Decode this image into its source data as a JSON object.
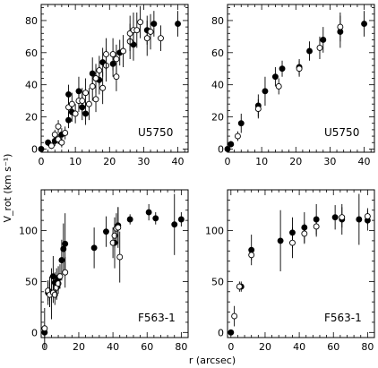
{
  "figure": {
    "xlabel": "r (arcsec)",
    "ylabel": "V_rot (km s⁻¹)"
  },
  "chart_data": [
    {
      "type": "scatter",
      "label": "U5750",
      "xlim": [
        0,
        43
      ],
      "ylim": [
        -2,
        90
      ],
      "xticks": [
        0,
        10,
        20,
        30,
        40
      ],
      "yticks": [
        0,
        20,
        40,
        60,
        80
      ],
      "series": [
        {
          "marker": "filled",
          "points": [
            {
              "x": 0,
              "y": 0,
              "err": 0
            },
            {
              "x": 2,
              "y": 4,
              "err": 2
            },
            {
              "x": 4,
              "y": 5,
              "err": 3
            },
            {
              "x": 6,
              "y": 9,
              "err": 4
            },
            {
              "x": 8,
              "y": 34,
              "err": 6
            },
            {
              "x": 8,
              "y": 18,
              "err": 5
            },
            {
              "x": 9,
              "y": 23,
              "err": 6
            },
            {
              "x": 11,
              "y": 36,
              "err": 9
            },
            {
              "x": 12,
              "y": 26,
              "err": 8
            },
            {
              "x": 13,
              "y": 22,
              "err": 7
            },
            {
              "x": 15,
              "y": 47,
              "err": 10
            },
            {
              "x": 17,
              "y": 43,
              "err": 9
            },
            {
              "x": 18,
              "y": 54,
              "err": 9
            },
            {
              "x": 21,
              "y": 53,
              "err": 8
            },
            {
              "x": 23,
              "y": 60,
              "err": 8
            },
            {
              "x": 27,
              "y": 65,
              "err": 10
            },
            {
              "x": 31,
              "y": 74,
              "err": 9
            },
            {
              "x": 33,
              "y": 78,
              "err": 8
            },
            {
              "x": 40,
              "y": 78,
              "err": 8
            }
          ]
        },
        {
          "marker": "open",
          "points": [
            {
              "x": 3,
              "y": 2,
              "err": 2
            },
            {
              "x": 4,
              "y": 9,
              "err": 3
            },
            {
              "x": 5,
              "y": 14,
              "err": 4
            },
            {
              "x": 5,
              "y": 6,
              "err": 3
            },
            {
              "x": 6,
              "y": 4,
              "err": 3
            },
            {
              "x": 7,
              "y": 10,
              "err": 4
            },
            {
              "x": 8,
              "y": 26,
              "err": 6
            },
            {
              "x": 9,
              "y": 28,
              "err": 7
            },
            {
              "x": 10,
              "y": 22,
              "err": 6
            },
            {
              "x": 11,
              "y": 30,
              "err": 7
            },
            {
              "x": 12,
              "y": 30,
              "err": 8
            },
            {
              "x": 13,
              "y": 35,
              "err": 9
            },
            {
              "x": 14,
              "y": 28,
              "err": 10
            },
            {
              "x": 15,
              "y": 39,
              "err": 9
            },
            {
              "x": 16,
              "y": 31,
              "err": 8
            },
            {
              "x": 16,
              "y": 44,
              "err": 9
            },
            {
              "x": 17,
              "y": 49,
              "err": 9
            },
            {
              "x": 18,
              "y": 38,
              "err": 10
            },
            {
              "x": 19,
              "y": 52,
              "err": 10
            },
            {
              "x": 19,
              "y": 59,
              "err": 10
            },
            {
              "x": 21,
              "y": 59,
              "err": 10
            },
            {
              "x": 22,
              "y": 45,
              "err": 9
            },
            {
              "x": 22,
              "y": 56,
              "err": 9
            },
            {
              "x": 24,
              "y": 61,
              "err": 10
            },
            {
              "x": 26,
              "y": 67,
              "err": 11
            },
            {
              "x": 26,
              "y": 72,
              "err": 11
            },
            {
              "x": 27,
              "y": 74,
              "err": 11
            },
            {
              "x": 28,
              "y": 74,
              "err": 11
            },
            {
              "x": 29,
              "y": 79,
              "err": 10
            },
            {
              "x": 31,
              "y": 69,
              "err": 11
            },
            {
              "x": 32,
              "y": 73,
              "err": 11
            },
            {
              "x": 35,
              "y": 69,
              "err": 8
            }
          ]
        }
      ]
    },
    {
      "type": "scatter",
      "label": "U5750",
      "xlim": [
        0,
        43
      ],
      "ylim": [
        -2,
        90
      ],
      "xticks": [
        0,
        10,
        20,
        30,
        40
      ],
      "yticks": [
        0,
        20,
        40,
        60,
        80
      ],
      "series": [
        {
          "marker": "filled",
          "points": [
            {
              "x": 0,
              "y": 0,
              "err": 0
            },
            {
              "x": 1,
              "y": 3,
              "err": 2
            },
            {
              "x": 4,
              "y": 16,
              "err": 6
            },
            {
              "x": 9,
              "y": 27,
              "err": 7
            },
            {
              "x": 11,
              "y": 36,
              "err": 9
            },
            {
              "x": 14,
              "y": 45,
              "err": 6
            },
            {
              "x": 16,
              "y": 50,
              "err": 5
            },
            {
              "x": 21,
              "y": 51,
              "err": 5
            },
            {
              "x": 24,
              "y": 61,
              "err": 6
            },
            {
              "x": 28,
              "y": 68,
              "err": 8
            },
            {
              "x": 33,
              "y": 73,
              "err": 10
            },
            {
              "x": 40,
              "y": 78,
              "err": 8
            }
          ]
        },
        {
          "marker": "open",
          "points": [
            {
              "x": 3,
              "y": 8,
              "err": 3
            },
            {
              "x": 9,
              "y": 25,
              "err": 6
            },
            {
              "x": 15,
              "y": 39,
              "err": 5
            },
            {
              "x": 21,
              "y": 50,
              "err": 5
            },
            {
              "x": 27,
              "y": 63,
              "err": 7
            },
            {
              "x": 33,
              "y": 76,
              "err": 9
            }
          ]
        }
      ]
    },
    {
      "type": "scatter",
      "label": "F563-1",
      "xlim": [
        -2,
        84
      ],
      "ylim": [
        -5,
        140
      ],
      "xticks": [
        0,
        20,
        40,
        60,
        80
      ],
      "yticks": [
        0,
        50,
        100
      ],
      "series": [
        {
          "marker": "filled",
          "points": [
            {
              "x": 0,
              "y": 0,
              "err": 0
            },
            {
              "x": 2,
              "y": 39,
              "err": 12
            },
            {
              "x": 3,
              "y": 40,
              "err": 15
            },
            {
              "x": 4,
              "y": 38,
              "err": 25
            },
            {
              "x": 5,
              "y": 55,
              "err": 20
            },
            {
              "x": 6,
              "y": 49,
              "err": 10
            },
            {
              "x": 7,
              "y": 48,
              "err": 15
            },
            {
              "x": 8,
              "y": 53,
              "err": 12
            },
            {
              "x": 10,
              "y": 71,
              "err": 20
            },
            {
              "x": 11,
              "y": 82,
              "err": 25
            },
            {
              "x": 12,
              "y": 87,
              "err": 30
            },
            {
              "x": 29,
              "y": 83,
              "err": 20
            },
            {
              "x": 36,
              "y": 99,
              "err": 15
            },
            {
              "x": 41,
              "y": 88,
              "err": 25
            },
            {
              "x": 43,
              "y": 105,
              "err": 18
            },
            {
              "x": 50,
              "y": 111,
              "err": 5
            },
            {
              "x": 61,
              "y": 118,
              "err": 8
            },
            {
              "x": 65,
              "y": 112,
              "err": 6
            },
            {
              "x": 76,
              "y": 106,
              "err": 30
            },
            {
              "x": 80,
              "y": 111,
              "err": 7
            }
          ]
        },
        {
          "marker": "open",
          "points": [
            {
              "x": 0,
              "y": 4,
              "err": 20
            },
            {
              "x": 2,
              "y": 41,
              "err": 10
            },
            {
              "x": 3,
              "y": 37,
              "err": 12
            },
            {
              "x": 5,
              "y": 39,
              "err": 10
            },
            {
              "x": 6,
              "y": 37,
              "err": 10
            },
            {
              "x": 7,
              "y": 44,
              "err": 12
            },
            {
              "x": 8,
              "y": 48,
              "err": 10
            },
            {
              "x": 9,
              "y": 55,
              "err": 12
            },
            {
              "x": 12,
              "y": 59,
              "err": 15
            },
            {
              "x": 40,
              "y": 88,
              "err": 15
            },
            {
              "x": 41,
              "y": 95,
              "err": 12
            },
            {
              "x": 42,
              "y": 102,
              "err": 15
            },
            {
              "x": 43,
              "y": 103,
              "err": 20
            },
            {
              "x": 44,
              "y": 74,
              "err": 25
            }
          ]
        }
      ]
    },
    {
      "type": "scatter",
      "label": "F563-1",
      "xlim": [
        -2,
        84
      ],
      "ylim": [
        -5,
        140
      ],
      "xticks": [
        0,
        20,
        40,
        60,
        80
      ],
      "yticks": [
        0,
        50,
        100
      ],
      "series": [
        {
          "marker": "filled",
          "points": [
            {
              "x": 0,
              "y": 0,
              "err": 0
            },
            {
              "x": 6,
              "y": 45,
              "err": 5
            },
            {
              "x": 12,
              "y": 81,
              "err": 15
            },
            {
              "x": 29,
              "y": 90,
              "err": 30
            },
            {
              "x": 36,
              "y": 98,
              "err": 15
            },
            {
              "x": 43,
              "y": 103,
              "err": 15
            },
            {
              "x": 50,
              "y": 111,
              "err": 15
            },
            {
              "x": 61,
              "y": 113,
              "err": 12
            },
            {
              "x": 65,
              "y": 111,
              "err": 15
            },
            {
              "x": 75,
              "y": 111,
              "err": 25
            },
            {
              "x": 80,
              "y": 110,
              "err": 10
            }
          ]
        },
        {
          "marker": "open",
          "points": [
            {
              "x": 2,
              "y": 16,
              "err": 10
            },
            {
              "x": 5,
              "y": 45,
              "err": 5
            },
            {
              "x": 12,
              "y": 76,
              "err": 5
            },
            {
              "x": 36,
              "y": 88,
              "err": 15
            },
            {
              "x": 43,
              "y": 97,
              "err": 10
            },
            {
              "x": 50,
              "y": 104,
              "err": 10
            },
            {
              "x": 65,
              "y": 113,
              "err": 10
            },
            {
              "x": 80,
              "y": 114,
              "err": 8
            }
          ]
        }
      ]
    }
  ]
}
